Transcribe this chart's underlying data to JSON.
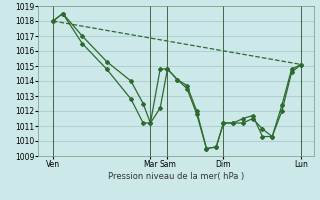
{
  "background_color": "#cce8e8",
  "grid_color": "#aacccc",
  "line_color": "#2d6a2d",
  "xlabel": "Pression niveau de la mer( hPa )",
  "ylim": [
    1009,
    1019
  ],
  "yticks": [
    1009,
    1010,
    1011,
    1012,
    1013,
    1014,
    1015,
    1016,
    1017,
    1018,
    1019
  ],
  "xlim": [
    -0.3,
    11.0
  ],
  "day_positions": [
    0.3,
    4.3,
    5.0,
    7.3,
    10.5
  ],
  "day_labels": [
    "Ven",
    "Mar",
    "Sam",
    "Dim",
    "Lun"
  ],
  "vline_positions": [
    0.3,
    4.3,
    5.0,
    7.3,
    10.5
  ],
  "series1_x": [
    0.3,
    0.7,
    1.5,
    2.5,
    3.5,
    4.0,
    4.3,
    4.7,
    5.0,
    5.4,
    5.8,
    6.2,
    6.6,
    7.0,
    7.3,
    7.7,
    8.1,
    8.5,
    8.9,
    9.3,
    9.7,
    10.1,
    10.5
  ],
  "series1_y": [
    1018.0,
    1018.5,
    1017.0,
    1015.3,
    1014.0,
    1012.5,
    1011.2,
    1012.2,
    1014.8,
    1014.1,
    1013.7,
    1012.0,
    1009.5,
    1009.6,
    1011.2,
    1011.2,
    1011.2,
    1011.5,
    1010.8,
    1010.3,
    1012.4,
    1014.8,
    1015.1
  ],
  "series2_x": [
    0.3,
    0.7,
    1.5,
    2.5,
    3.5,
    4.0,
    4.3,
    4.7,
    5.0,
    5.4,
    5.8,
    6.2,
    6.6,
    7.0,
    7.3,
    7.7,
    8.1,
    8.5,
    8.9,
    9.3,
    9.7,
    10.1,
    10.5
  ],
  "series2_y": [
    1018.0,
    1018.5,
    1016.5,
    1014.8,
    1012.8,
    1011.2,
    1011.2,
    1014.8,
    1014.8,
    1014.1,
    1013.5,
    1011.8,
    1009.5,
    1009.6,
    1011.2,
    1011.2,
    1011.5,
    1011.7,
    1010.3,
    1010.3,
    1012.0,
    1014.6,
    1015.1
  ],
  "series3_x": [
    0.3,
    10.5
  ],
  "series3_y": [
    1018.0,
    1015.1
  ]
}
